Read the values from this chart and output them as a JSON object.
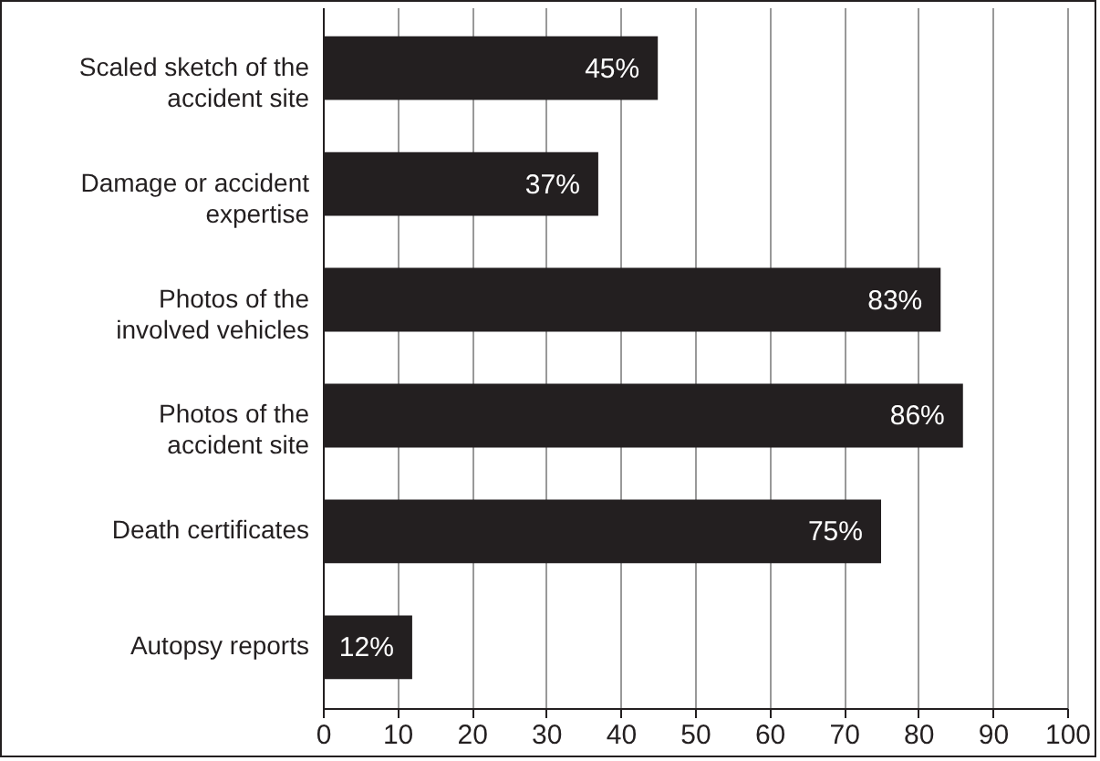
{
  "chart_data": {
    "type": "bar",
    "orientation": "horizontal",
    "categories": [
      "Scaled sketch of the accident site",
      "Damage or accident expertise",
      "Photos of the involved vehicles",
      "Photos of the accident site",
      "Death certificates",
      "Autopsy reports"
    ],
    "values": [
      45,
      37,
      83,
      86,
      75,
      12
    ],
    "value_labels": [
      "45%",
      "37%",
      "83%",
      "86%",
      "75%",
      "12%"
    ],
    "color": "#231f20",
    "xlim": [
      0,
      100
    ],
    "xticks": [
      0,
      10,
      20,
      30,
      40,
      50,
      60,
      70,
      80,
      90,
      100
    ],
    "grid": "x"
  }
}
